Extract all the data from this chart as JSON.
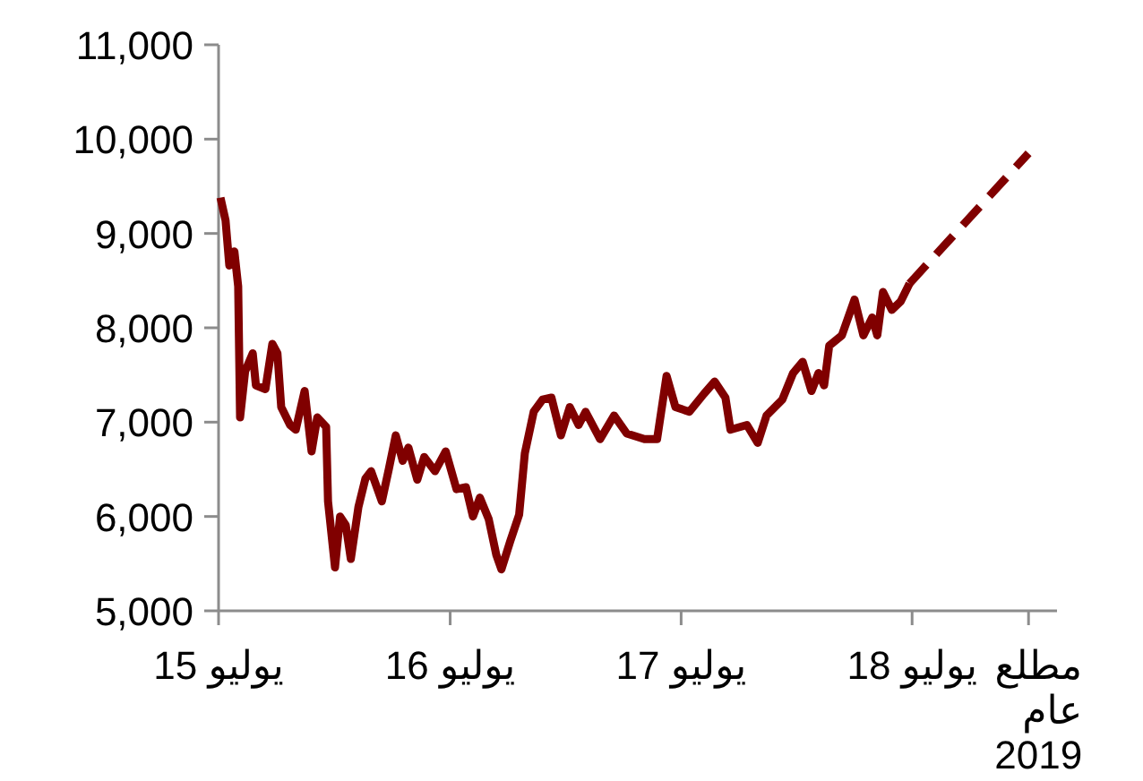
{
  "chart_data": {
    "type": "line",
    "xlim": [
      "2015-07-01",
      "2019-02-15"
    ],
    "xticks": [
      {
        "value": "2015-07-01",
        "label": "يوليو 15"
      },
      {
        "value": "2016-07-01",
        "label": "يوليو 16"
      },
      {
        "value": "2017-07-01",
        "label": "يوليو 17"
      },
      {
        "value": "2018-07-01",
        "label": "يوليو 18"
      },
      {
        "value": "2019-01-01",
        "label": "مطلع عام 2019"
      }
    ],
    "ylim": [
      5000,
      11000
    ],
    "yticks": [
      {
        "value": 5000,
        "label": "5,000"
      },
      {
        "value": 6000,
        "label": "6,000"
      },
      {
        "value": 7000,
        "label": "7,000"
      },
      {
        "value": 8000,
        "label": "8,000"
      },
      {
        "value": 9000,
        "label": "9,000"
      },
      {
        "value": 10000,
        "label": "10,000"
      },
      {
        "value": 11000,
        "label": "11,000"
      }
    ],
    "series": [
      {
        "color": "#800000",
        "line_style": "solid",
        "x": [
          "2015-07-04",
          "2015-07-12",
          "2015-07-18",
          "2015-07-26",
          "2015-08-01",
          "2015-08-04",
          "2015-08-12",
          "2015-08-24",
          "2015-08-29",
          "2015-09-13",
          "2015-09-24",
          "2015-10-02",
          "2015-10-08",
          "2015-10-22",
          "2015-10-31",
          "2015-11-14",
          "2015-11-25",
          "2015-12-04",
          "2015-12-18",
          "2015-12-21",
          "2016-01-01",
          "2016-01-09",
          "2016-01-18",
          "2016-01-26",
          "2016-02-07",
          "2016-02-18",
          "2016-02-27",
          "2016-03-15",
          "2016-03-26",
          "2016-04-06",
          "2016-04-17",
          "2016-04-26",
          "2016-05-10",
          "2016-05-21",
          "2016-06-07",
          "2016-06-24",
          "2016-07-11",
          "2016-07-26",
          "2016-08-06",
          "2016-08-17",
          "2016-08-31",
          "2016-09-12",
          "2016-09-20",
          "2016-10-04",
          "2016-10-18",
          "2016-10-27",
          "2016-11-10",
          "2016-11-24",
          "2016-12-08",
          "2016-12-23",
          "2017-01-06",
          "2017-01-20",
          "2017-01-31",
          "2017-02-23",
          "2017-03-17",
          "2017-04-06",
          "2017-05-04",
          "2017-05-24",
          "2017-06-08",
          "2017-06-22",
          "2017-07-14",
          "2017-08-06",
          "2017-08-23",
          "2017-09-09",
          "2017-09-17",
          "2017-10-13",
          "2017-10-30",
          "2017-11-13",
          "2017-12-08",
          "2017-12-25",
          "2018-01-09",
          "2018-01-23",
          "2018-02-03",
          "2018-02-12",
          "2018-02-20",
          "2018-03-12",
          "2018-04-01",
          "2018-04-15",
          "2018-04-29",
          "2018-05-07",
          "2018-05-16",
          "2018-05-30",
          "2018-06-13",
          "2018-06-27"
        ],
        "values": [
          9380,
          9140,
          8660,
          8810,
          8440,
          7050,
          7540,
          7730,
          7390,
          7350,
          7830,
          7730,
          7160,
          6970,
          6920,
          7330,
          6690,
          7050,
          6950,
          6160,
          5460,
          6000,
          5910,
          5550,
          6100,
          6400,
          6480,
          6160,
          6500,
          6860,
          6590,
          6730,
          6390,
          6630,
          6480,
          6690,
          6290,
          6310,
          6000,
          6200,
          5970,
          5590,
          5440,
          5740,
          6020,
          6670,
          7110,
          7240,
          7260,
          6860,
          7160,
          6970,
          7110,
          6820,
          7070,
          6880,
          6820,
          6820,
          7490,
          7160,
          7110,
          7300,
          7430,
          7260,
          6920,
          6970,
          6780,
          7070,
          7240,
          7520,
          7640,
          7330,
          7520,
          7390,
          7810,
          7920,
          8300,
          7920,
          8110,
          7920,
          8380,
          8190,
          8280,
          8470
        ]
      },
      {
        "color": "#800000",
        "line_style": "dashed",
        "x": [
          "2018-06-27",
          "2019-01-01"
        ],
        "values": [
          8470,
          9850
        ]
      }
    ]
  }
}
